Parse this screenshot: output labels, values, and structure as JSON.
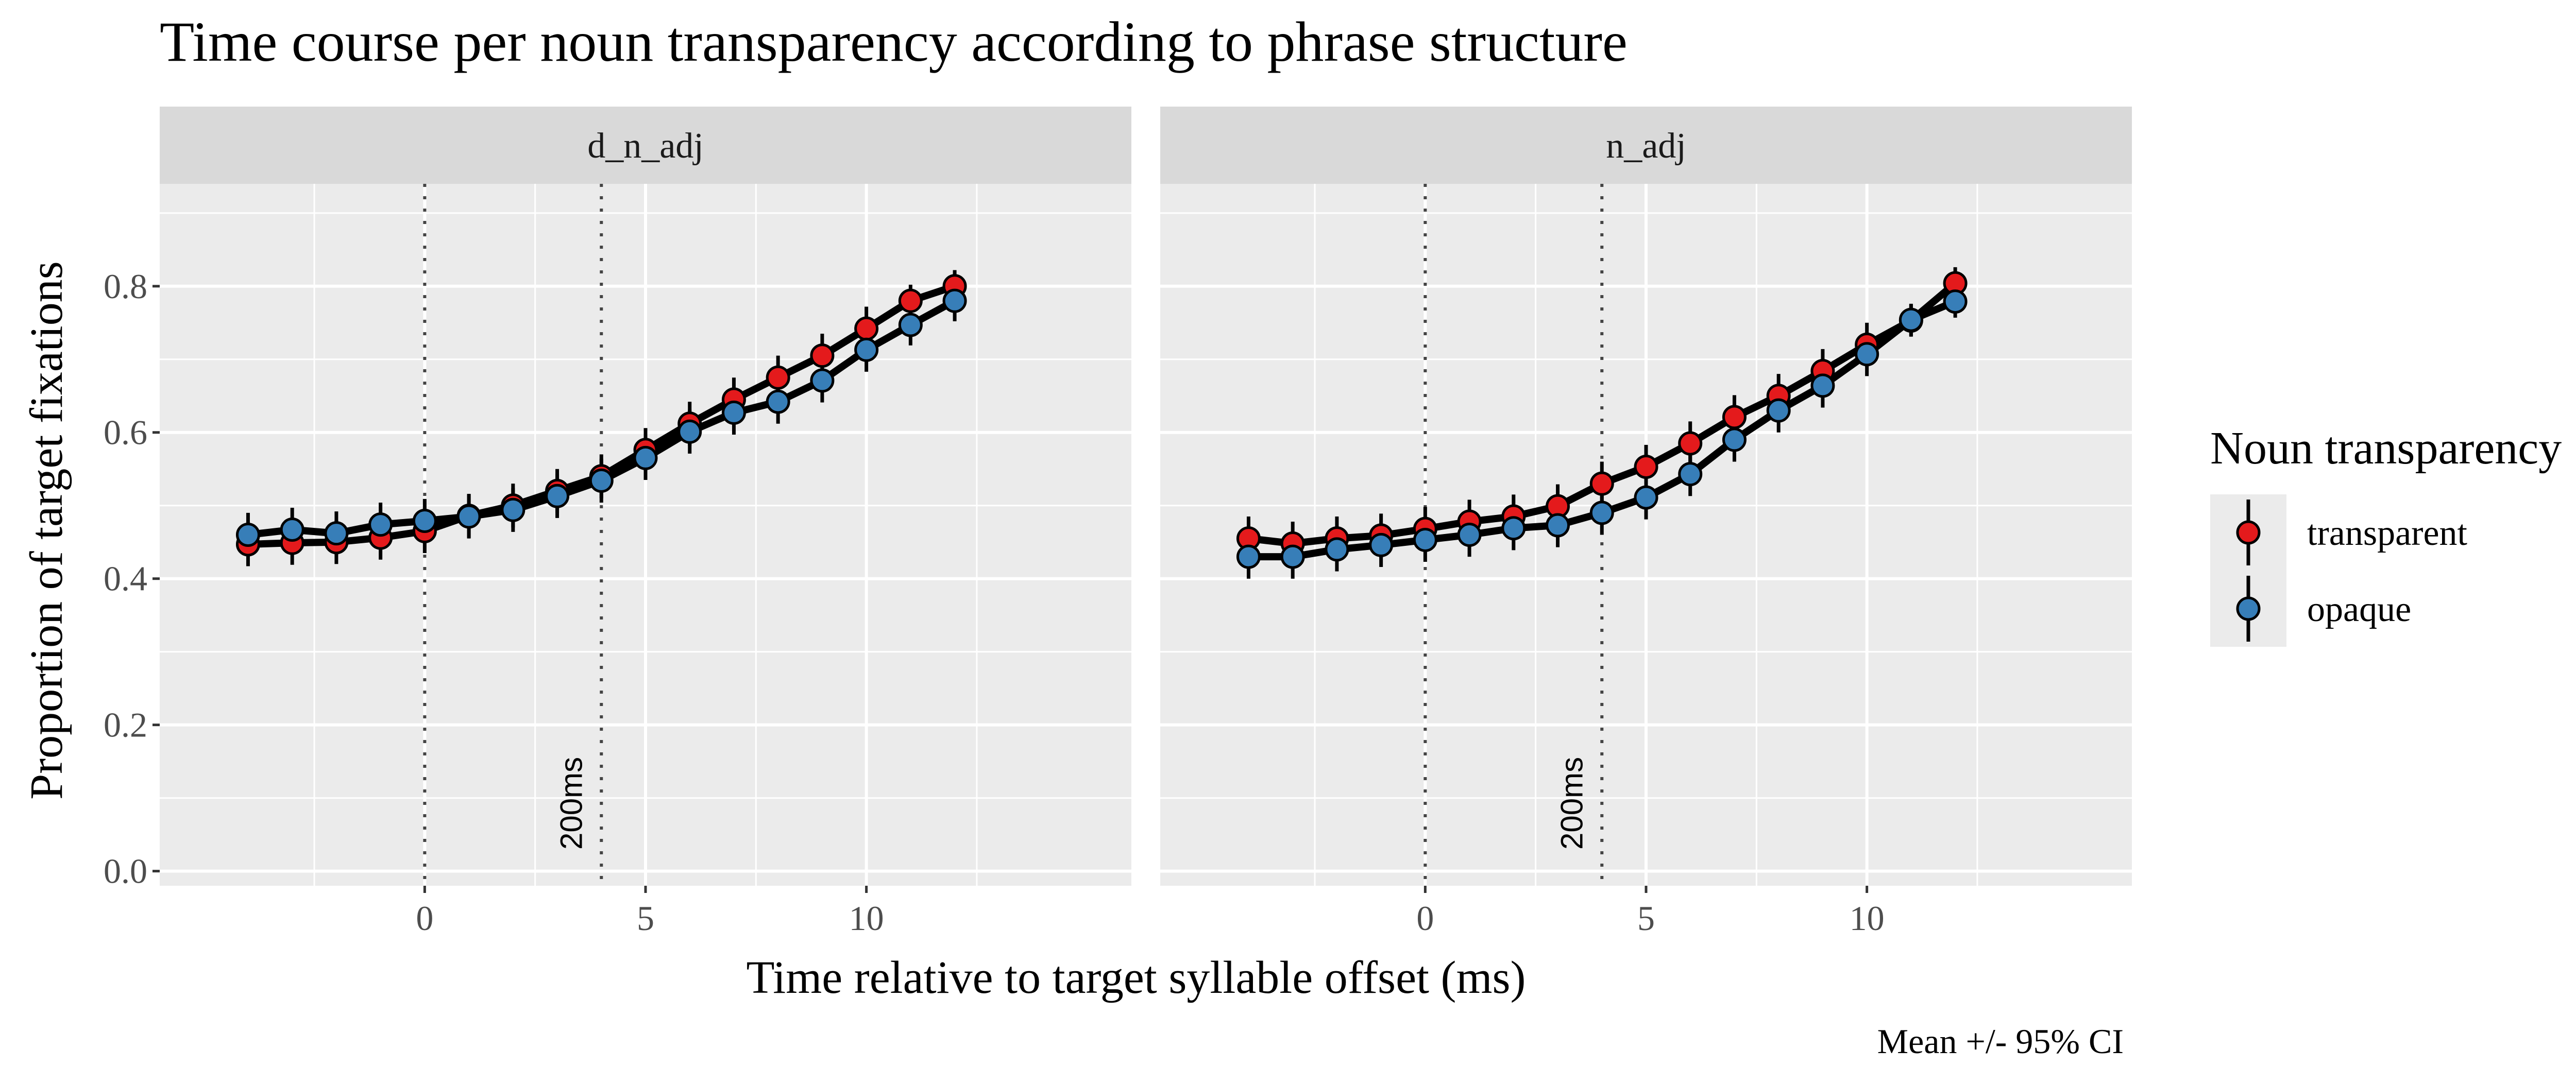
{
  "chart_data": {
    "type": "line",
    "title": "Time course per noun transparency according to phrase structure",
    "xlabel": "Time relative to target syllable offset (ms)",
    "ylabel": "Proportion of target fixations",
    "caption": "Mean +/- 95% CI",
    "xlim": [
      -6,
      16
    ],
    "ylim": [
      -0.02,
      0.94
    ],
    "x_ticks": [
      0,
      5,
      10
    ],
    "y_ticks": [
      0.0,
      0.2,
      0.4,
      0.6,
      0.8
    ],
    "y_tick_labels": [
      "0.0",
      "0.2",
      "0.4",
      "0.6",
      "0.8"
    ],
    "grid": true,
    "legend": {
      "title": "Noun transparency",
      "position": "right",
      "entries": [
        {
          "name": "transparent",
          "color": "#E41A1C"
        },
        {
          "name": "opaque",
          "color": "#377EB8"
        }
      ]
    },
    "vertical_lines": [
      {
        "x": 0,
        "label": ""
      },
      {
        "x": 4,
        "label": "200ms"
      }
    ],
    "facets": [
      {
        "name": "d_n_adj",
        "series": [
          {
            "name": "transparent",
            "x": [
              -4,
              -3,
              -2,
              -1,
              0,
              1,
              2,
              3,
              4,
              5,
              6,
              7,
              8,
              9,
              10,
              11,
              12
            ],
            "y": [
              0.447,
              0.449,
              0.45,
              0.456,
              0.465,
              0.486,
              0.5,
              0.52,
              0.54,
              0.576,
              0.612,
              0.645,
              0.675,
              0.705,
              0.742,
              0.78,
              0.8
            ],
            "ci": [
              0.03,
              0.03,
              0.03,
              0.03,
              0.03,
              0.03,
              0.03,
              0.03,
              0.03,
              0.03,
              0.03,
              0.03,
              0.03,
              0.03,
              0.03,
              0.022,
              0.022
            ]
          },
          {
            "name": "opaque",
            "x": [
              -4,
              -3,
              -2,
              -1,
              0,
              1,
              2,
              3,
              4,
              5,
              6,
              7,
              8,
              9,
              10,
              11,
              12
            ],
            "y": [
              0.46,
              0.467,
              0.462,
              0.474,
              0.479,
              0.485,
              0.494,
              0.513,
              0.534,
              0.565,
              0.601,
              0.627,
              0.642,
              0.671,
              0.713,
              0.747,
              0.78
            ],
            "ci": [
              0.03,
              0.03,
              0.03,
              0.03,
              0.03,
              0.03,
              0.03,
              0.03,
              0.03,
              0.03,
              0.03,
              0.03,
              0.03,
              0.03,
              0.03,
              0.028,
              0.028
            ]
          }
        ]
      },
      {
        "name": "n_adj",
        "series": [
          {
            "name": "transparent",
            "x": [
              -4,
              -3,
              -2,
              -1,
              0,
              1,
              2,
              3,
              4,
              5,
              6,
              7,
              8,
              9,
              10,
              11,
              12
            ],
            "y": [
              0.455,
              0.448,
              0.455,
              0.459,
              0.468,
              0.478,
              0.485,
              0.499,
              0.53,
              0.553,
              0.585,
              0.621,
              0.65,
              0.684,
              0.72,
              0.753,
              0.804
            ],
            "ci": [
              0.03,
              0.03,
              0.03,
              0.03,
              0.03,
              0.03,
              0.03,
              0.03,
              0.03,
              0.03,
              0.03,
              0.03,
              0.03,
              0.03,
              0.03,
              0.022,
              0.022
            ]
          },
          {
            "name": "opaque",
            "x": [
              -4,
              -3,
              -2,
              -1,
              0,
              1,
              2,
              3,
              4,
              5,
              6,
              7,
              8,
              9,
              10,
              11,
              12
            ],
            "y": [
              0.43,
              0.43,
              0.44,
              0.446,
              0.453,
              0.46,
              0.469,
              0.473,
              0.49,
              0.511,
              0.543,
              0.59,
              0.63,
              0.664,
              0.707,
              0.754,
              0.779
            ],
            "ci": [
              0.03,
              0.03,
              0.03,
              0.03,
              0.03,
              0.03,
              0.03,
              0.03,
              0.03,
              0.03,
              0.03,
              0.03,
              0.03,
              0.03,
              0.03,
              0.022,
              0.022
            ]
          }
        ]
      }
    ]
  }
}
